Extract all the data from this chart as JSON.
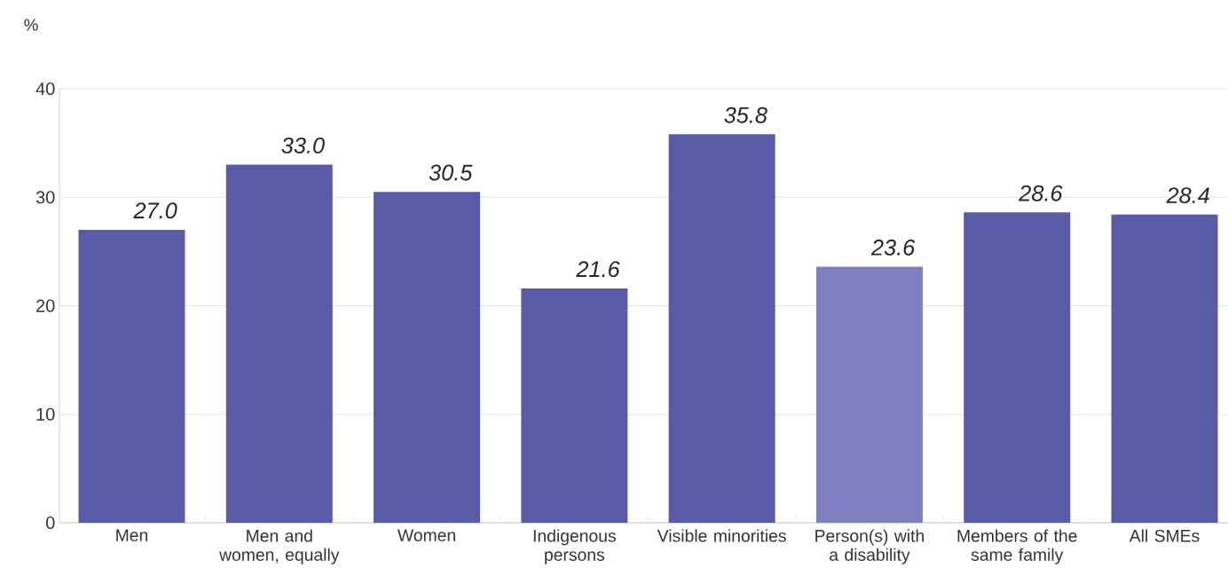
{
  "chart_data": {
    "type": "bar",
    "ylabel": "%",
    "categories": [
      "Men",
      "Men and women, equally",
      "Women",
      "Indigenous persons",
      "Visible minorities",
      "Person(s) with a disability",
      "Members of the same family",
      "All SMEs"
    ],
    "values": [
      27.0,
      33.0,
      30.5,
      21.6,
      35.8,
      23.6,
      28.6,
      28.4
    ],
    "colors": [
      "#585ba5",
      "#585ba5",
      "#585ba5",
      "#585ba5",
      "#585ba5",
      "#7d80bd",
      "#585ba5",
      "#585ba5"
    ],
    "value_labels": [
      "27.0",
      "33.0",
      "30.5",
      "21.6",
      "35.8",
      "23.6",
      "28.6",
      "28.4"
    ],
    "ylim": [
      0,
      40
    ],
    "yticks": [
      0,
      10,
      20,
      30,
      40
    ],
    "grid": "y"
  }
}
